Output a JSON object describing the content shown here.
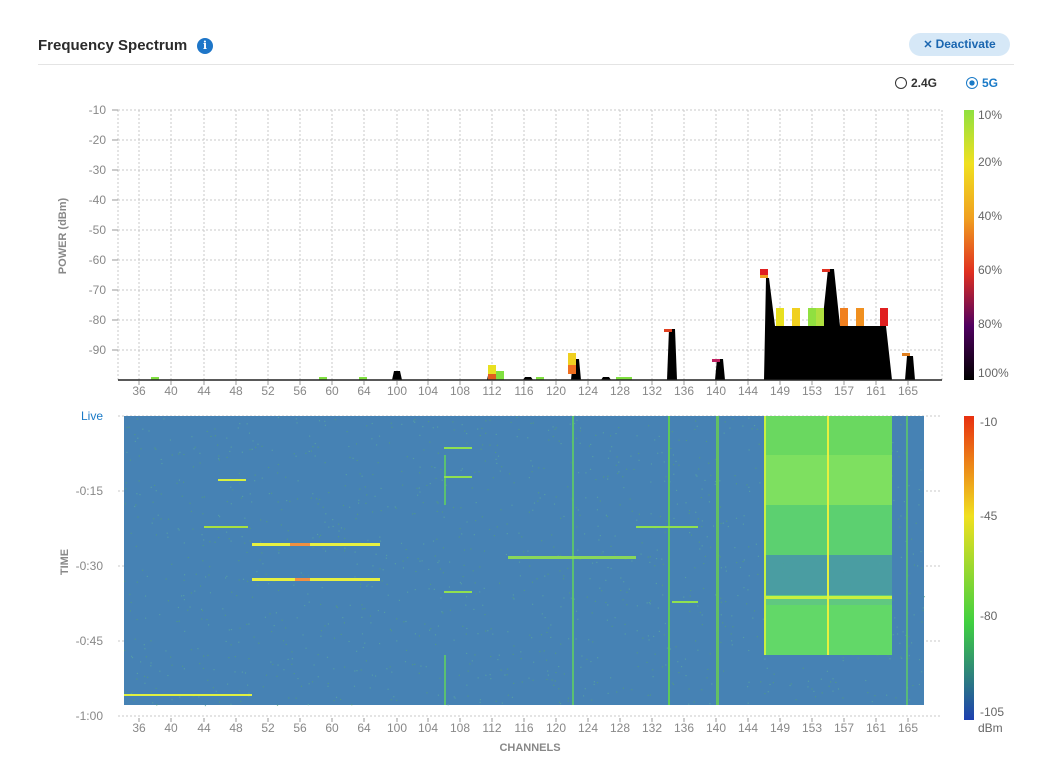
{
  "header": {
    "title": "Frequency Spectrum",
    "info_icon": "info-icon",
    "deactivate_label": "Deactivate",
    "deactivate_icon": "close-icon"
  },
  "band_selector": {
    "options": [
      {
        "label": "2.4G",
        "selected": false
      },
      {
        "label": "5G",
        "selected": true
      }
    ]
  },
  "power_chart": {
    "ylabel": "POWER (dBm)",
    "yticks": [
      "-10",
      "-20",
      "-30",
      "-40",
      "-50",
      "-60",
      "-70",
      "-80",
      "-90"
    ],
    "legend_labels": [
      "10%",
      "20%",
      "40%",
      "60%",
      "80%",
      "100%"
    ]
  },
  "waterfall_chart": {
    "ylabel": "TIME",
    "yticks": [
      "Live",
      "-0:15",
      "-0:30",
      "-0:45",
      "-1:00"
    ],
    "xlabel": "CHANNELS",
    "legend_labels": [
      "-10",
      "-45",
      "-80",
      "-105"
    ],
    "legend_unit": "dBm"
  },
  "channels": [
    "36",
    "40",
    "44",
    "48",
    "52",
    "56",
    "60",
    "64",
    "100",
    "104",
    "108",
    "112",
    "116",
    "120",
    "124",
    "128",
    "132",
    "136",
    "140",
    "144",
    "149",
    "153",
    "157",
    "161",
    "165"
  ],
  "colors": {
    "accent": "#1a7ac7",
    "waterfall_bg": "#4682b4",
    "gridline": "#cccccc"
  },
  "chart_data": [
    {
      "type": "area",
      "title": "",
      "ylabel": "POWER (dBm)",
      "ylim": [
        -100,
        -10
      ],
      "series": [
        {
          "x": [
            "36",
            "40",
            "44",
            "48",
            "52",
            "56",
            "60",
            "64",
            "100",
            "104",
            "108",
            "112",
            "116",
            "120",
            "124",
            "128",
            "132",
            "136",
            "140",
            "144",
            "149",
            "153",
            "157",
            "161",
            "165"
          ],
          "values": [
            -100,
            -100,
            -100,
            -100,
            -100,
            -100,
            -100,
            -100,
            -97,
            -100,
            -100,
            -97,
            -99,
            -100,
            -99,
            -99,
            -100,
            -83,
            -93,
            -100,
            -66,
            -82,
            -63,
            -82,
            -92
          ]
        }
      ]
    },
    {
      "type": "heatmap",
      "title": "",
      "ylabel": "TIME",
      "xlabel": "CHANNELS",
      "ylim": [
        "Live",
        "-1:00"
      ],
      "colorbar": {
        "min": -105,
        "max": -10,
        "unit": "dBm"
      }
    }
  ]
}
